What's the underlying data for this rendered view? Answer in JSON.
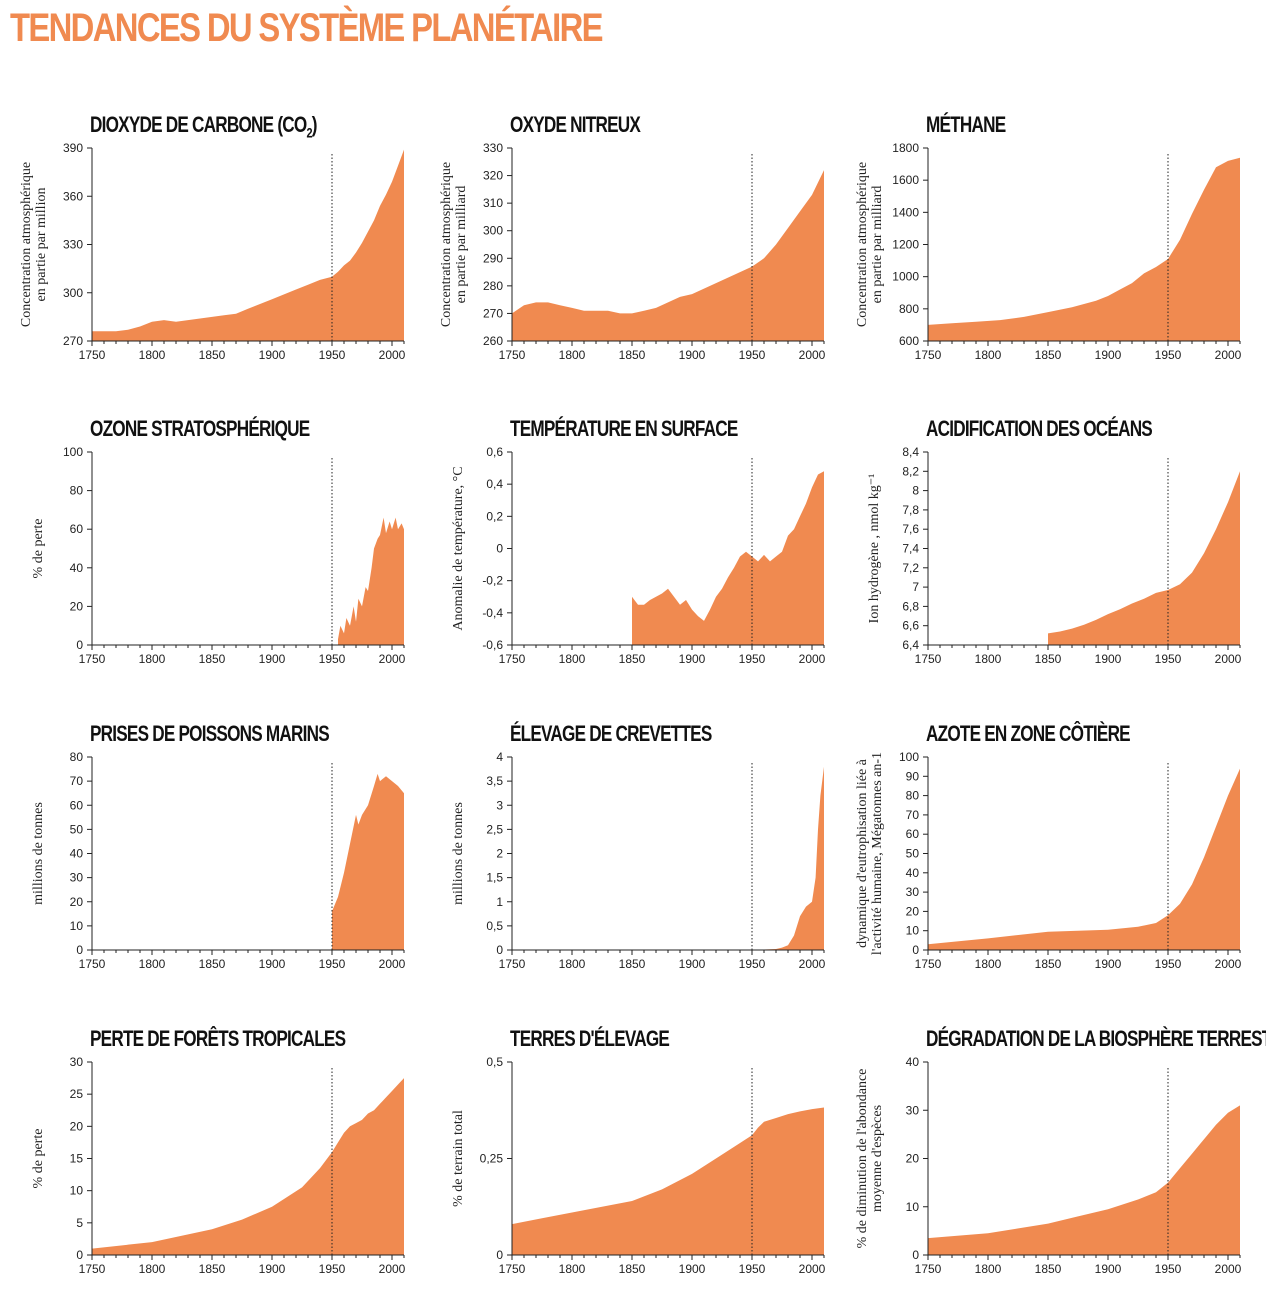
{
  "page_title": "TENDANCES DU SYSTÈME PLANÉTAIRE",
  "colors": {
    "fill": "#f08a50",
    "title": "#f08a50",
    "text": "#111111"
  },
  "chart_data": [
    {
      "type": "area",
      "title": "DIOXYDE DE CARBONE (CO",
      "title_sub": "2",
      "title_tail": ")",
      "ylabel": [
        "Concentration atmosphérique",
        "en partie par million"
      ],
      "xlabel": "",
      "xlim": [
        1750,
        2010
      ],
      "ylim": [
        270,
        390
      ],
      "yticks": [
        270,
        300,
        330,
        360,
        390
      ],
      "ytick_labels": [
        "270",
        "300",
        "330",
        "360",
        "390"
      ],
      "xticks": [
        1750,
        1800,
        1850,
        1900,
        1950,
        2000
      ],
      "xtick_labels": [
        "1750",
        "1800",
        "1850",
        "1900",
        "1950",
        "2000"
      ],
      "marker_year": 1950,
      "x": [
        1750,
        1770,
        1780,
        1790,
        1800,
        1810,
        1820,
        1830,
        1840,
        1850,
        1860,
        1870,
        1880,
        1890,
        1900,
        1910,
        1920,
        1930,
        1940,
        1950,
        1955,
        1960,
        1965,
        1970,
        1975,
        1980,
        1985,
        1990,
        1995,
        2000,
        2005,
        2010
      ],
      "y": [
        276,
        276,
        277,
        279,
        282,
        283,
        282,
        283,
        284,
        285,
        286,
        287,
        290,
        293,
        296,
        299,
        302,
        305,
        308,
        310,
        313,
        317,
        320,
        325,
        331,
        338,
        345,
        354,
        361,
        369,
        379,
        389
      ]
    },
    {
      "type": "area",
      "title": "OXYDE NITREUX",
      "ylabel": [
        "Concentration atmosphérique",
        "en partie par milliard"
      ],
      "xlabel": "",
      "xlim": [
        1750,
        2010
      ],
      "ylim": [
        260,
        330
      ],
      "yticks": [
        260,
        270,
        280,
        290,
        300,
        310,
        320,
        330
      ],
      "ytick_labels": [
        "260",
        "270",
        "280",
        "290",
        "300",
        "310",
        "320",
        "330"
      ],
      "xticks": [
        1750,
        1800,
        1850,
        1900,
        1950,
        2000
      ],
      "xtick_labels": [
        "1750",
        "1800",
        "1850",
        "1900",
        "1950",
        "2000"
      ],
      "marker_year": 1950,
      "x": [
        1750,
        1760,
        1770,
        1780,
        1790,
        1800,
        1810,
        1820,
        1830,
        1840,
        1850,
        1860,
        1870,
        1880,
        1890,
        1900,
        1910,
        1920,
        1930,
        1940,
        1950,
        1960,
        1970,
        1980,
        1990,
        2000,
        2010
      ],
      "y": [
        270,
        273,
        274,
        274,
        273,
        272,
        271,
        271,
        271,
        270,
        270,
        271,
        272,
        274,
        276,
        277,
        279,
        281,
        283,
        285,
        287,
        290,
        295,
        301,
        307,
        313,
        322
      ]
    },
    {
      "type": "area",
      "title": "MÉTHANE",
      "ylabel": [
        "Concentration atmosphérique",
        "en partie par milliard"
      ],
      "xlabel": "",
      "xlim": [
        1750,
        2010
      ],
      "ylim": [
        600,
        1800
      ],
      "yticks": [
        600,
        800,
        1000,
        1200,
        1400,
        1600,
        1800
      ],
      "ytick_labels": [
        "600",
        "800",
        "1000",
        "1200",
        "1400",
        "1600",
        "1800"
      ],
      "xticks": [
        1750,
        1800,
        1850,
        1900,
        1950,
        2000
      ],
      "xtick_labels": [
        "1750",
        "1800",
        "1850",
        "1900",
        "1950",
        "2000"
      ],
      "marker_year": 1950,
      "x": [
        1750,
        1770,
        1790,
        1810,
        1830,
        1850,
        1870,
        1890,
        1900,
        1910,
        1920,
        1930,
        1940,
        1950,
        1960,
        1970,
        1980,
        1990,
        2000,
        2010
      ],
      "y": [
        700,
        710,
        720,
        730,
        750,
        780,
        810,
        850,
        880,
        920,
        960,
        1020,
        1060,
        1110,
        1230,
        1390,
        1540,
        1680,
        1720,
        1740
      ]
    },
    {
      "type": "area",
      "title": "OZONE STRATOSPHÉRIQUE",
      "ylabel": [
        "% de perte"
      ],
      "xlabel": "",
      "xlim": [
        1750,
        2010
      ],
      "ylim": [
        0,
        100
      ],
      "yticks": [
        0,
        20,
        40,
        60,
        80,
        100
      ],
      "ytick_labels": [
        "0",
        "20",
        "40",
        "60",
        "80",
        "100"
      ],
      "xticks": [
        1750,
        1800,
        1850,
        1900,
        1950,
        2000
      ],
      "xtick_labels": [
        "1750",
        "1800",
        "1850",
        "1900",
        "1950",
        "2000"
      ],
      "marker_year": 1950,
      "x": [
        1955,
        1957,
        1960,
        1962,
        1965,
        1968,
        1970,
        1972,
        1975,
        1978,
        1980,
        1983,
        1985,
        1988,
        1990,
        1993,
        1995,
        1998,
        2000,
        2003,
        2005,
        2008,
        2010
      ],
      "y": [
        3,
        10,
        6,
        14,
        10,
        20,
        12,
        24,
        20,
        30,
        28,
        40,
        50,
        55,
        57,
        66,
        58,
        64,
        60,
        66,
        60,
        63,
        60
      ]
    },
    {
      "type": "area",
      "title": "TEMPÉRATURE EN SURFACE",
      "ylabel": [
        "Anomalie de température, °C"
      ],
      "xlabel": "",
      "xlim": [
        1750,
        2010
      ],
      "ylim": [
        -0.6,
        0.6
      ],
      "yticks": [
        -0.6,
        -0.4,
        -0.2,
        0,
        0.2,
        0.4,
        0.6
      ],
      "ytick_labels": [
        "-0,6",
        "-0,4",
        "-0,2",
        "0",
        "0,2",
        "0,4",
        "0,6"
      ],
      "xticks": [
        1750,
        1800,
        1850,
        1900,
        1950,
        2000
      ],
      "xtick_labels": [
        "1750",
        "1800",
        "1850",
        "1900",
        "1950",
        "2000"
      ],
      "marker_year": 1950,
      "x": [
        1850,
        1855,
        1860,
        1865,
        1870,
        1875,
        1880,
        1885,
        1890,
        1895,
        1900,
        1905,
        1910,
        1915,
        1920,
        1925,
        1930,
        1935,
        1940,
        1945,
        1950,
        1955,
        1960,
        1965,
        1970,
        1975,
        1980,
        1985,
        1990,
        1995,
        2000,
        2005,
        2010
      ],
      "y": [
        -0.3,
        -0.35,
        -0.35,
        -0.32,
        -0.3,
        -0.28,
        -0.25,
        -0.3,
        -0.35,
        -0.32,
        -0.38,
        -0.42,
        -0.45,
        -0.38,
        -0.3,
        -0.25,
        -0.18,
        -0.12,
        -0.05,
        -0.02,
        -0.05,
        -0.08,
        -0.04,
        -0.08,
        -0.05,
        -0.02,
        0.08,
        0.12,
        0.2,
        0.28,
        0.38,
        0.46,
        0.48
      ]
    },
    {
      "type": "area",
      "title": "ACIDIFICATION DES OCÉANS",
      "ylabel": [
        "Ion hydrogène , nmol kg⁻¹"
      ],
      "xlabel": "",
      "xlim": [
        1750,
        2010
      ],
      "ylim": [
        6.4,
        8.4
      ],
      "yticks": [
        6.4,
        6.6,
        6.8,
        7.0,
        7.2,
        7.4,
        7.6,
        7.8,
        8.0,
        8.2,
        8.4
      ],
      "ytick_labels": [
        "6,4",
        "6,6",
        "6,8",
        "7",
        "7,2",
        "7,4",
        "7,6",
        "7,8",
        "8",
        "8,2",
        "8,4"
      ],
      "xticks": [
        1750,
        1800,
        1850,
        1900,
        1950,
        2000
      ],
      "xtick_labels": [
        "1750",
        "1800",
        "1850",
        "1900",
        "1950",
        "2000"
      ],
      "marker_year": 1950,
      "x": [
        1850,
        1860,
        1870,
        1880,
        1890,
        1900,
        1910,
        1920,
        1930,
        1940,
        1950,
        1960,
        1970,
        1980,
        1990,
        2000,
        2010
      ],
      "y": [
        6.52,
        6.54,
        6.57,
        6.61,
        6.66,
        6.72,
        6.77,
        6.83,
        6.88,
        6.94,
        6.97,
        7.03,
        7.15,
        7.35,
        7.6,
        7.88,
        8.2
      ]
    },
    {
      "type": "area",
      "title": "PRISES DE POISSONS MARINS",
      "ylabel": [
        "millions de tonnes"
      ],
      "xlabel": "",
      "xlim": [
        1750,
        2010
      ],
      "ylim": [
        0,
        80
      ],
      "yticks": [
        0,
        10,
        20,
        30,
        40,
        50,
        60,
        70,
        80
      ],
      "ytick_labels": [
        "0",
        "10",
        "20",
        "30",
        "40",
        "50",
        "60",
        "70",
        "80"
      ],
      "xticks": [
        1750,
        1800,
        1850,
        1900,
        1950,
        2000
      ],
      "xtick_labels": [
        "1750",
        "1800",
        "1850",
        "1900",
        "1950",
        "2000"
      ],
      "marker_year": 1950,
      "x": [
        1950,
        1955,
        1960,
        1965,
        1970,
        1972,
        1975,
        1980,
        1985,
        1988,
        1990,
        1995,
        2000,
        2005,
        2010
      ],
      "y": [
        16,
        22,
        32,
        44,
        56,
        52,
        56,
        60,
        68,
        73,
        70,
        72,
        70,
        68,
        65
      ]
    },
    {
      "type": "area",
      "title": "ÉLEVAGE DE CREVETTES",
      "ylabel": [
        "millions de  tonnes"
      ],
      "xlabel": "",
      "xlim": [
        1750,
        2010
      ],
      "ylim": [
        0,
        4
      ],
      "yticks": [
        0,
        0.5,
        1,
        1.5,
        2,
        2.5,
        3,
        3.5,
        4
      ],
      "ytick_labels": [
        "0",
        "0,5",
        "1",
        "1,5",
        "2",
        "2,5",
        "3",
        "3,5",
        "4"
      ],
      "xticks": [
        1750,
        1800,
        1850,
        1900,
        1950,
        2000
      ],
      "xtick_labels": [
        "1750",
        "1800",
        "1850",
        "1900",
        "1950",
        "2000"
      ],
      "marker_year": 1950,
      "x": [
        1950,
        1960,
        1970,
        1975,
        1980,
        1985,
        1990,
        1995,
        2000,
        2003,
        2005,
        2007,
        2010
      ],
      "y": [
        0,
        0.01,
        0.02,
        0.05,
        0.1,
        0.3,
        0.7,
        0.9,
        1.0,
        1.5,
        2.5,
        3.2,
        3.8
      ]
    },
    {
      "type": "area",
      "title": "AZOTE EN ZONE CÔTIÈRE",
      "ylabel": [
        "dynamique d'eutrophisation liée à",
        "l'activité humaine, Mégatonnes an-1"
      ],
      "xlabel": "",
      "xlim": [
        1750,
        2010
      ],
      "ylim": [
        0,
        100
      ],
      "yticks": [
        0,
        10,
        20,
        30,
        40,
        50,
        60,
        70,
        80,
        90,
        100
      ],
      "ytick_labels": [
        "0",
        "10",
        "20",
        "30",
        "40",
        "50",
        "60",
        "70",
        "80",
        "90",
        "100"
      ],
      "xticks": [
        1750,
        1800,
        1850,
        1900,
        1950,
        2000
      ],
      "xtick_labels": [
        "1750",
        "1800",
        "1850",
        "1900",
        "1950",
        "2000"
      ],
      "marker_year": 1950,
      "x": [
        1750,
        1800,
        1850,
        1875,
        1900,
        1925,
        1940,
        1950,
        1960,
        1970,
        1980,
        1990,
        2000,
        2010
      ],
      "y": [
        3,
        6,
        9.5,
        10,
        10.5,
        12,
        14,
        18,
        24,
        34,
        48,
        64,
        80,
        94
      ]
    },
    {
      "type": "area",
      "title": "PERTE DE FORÊTS TROPICALES",
      "ylabel": [
        "% de perte"
      ],
      "xlabel": "",
      "xlim": [
        1750,
        2010
      ],
      "ylim": [
        0,
        30
      ],
      "yticks": [
        0,
        5,
        10,
        15,
        20,
        25,
        30
      ],
      "ytick_labels": [
        "0",
        "5",
        "10",
        "15",
        "20",
        "25",
        "30"
      ],
      "xticks": [
        1750,
        1800,
        1850,
        1900,
        1950,
        2000
      ],
      "xtick_labels": [
        "1750",
        "1800",
        "1850",
        "1900",
        "1950",
        "2000"
      ],
      "marker_year": 1950,
      "x": [
        1750,
        1800,
        1850,
        1875,
        1900,
        1925,
        1940,
        1950,
        1955,
        1960,
        1965,
        1970,
        1975,
        1980,
        1985,
        1990,
        1995,
        2000,
        2005,
        2010
      ],
      "y": [
        1,
        2,
        4,
        5.5,
        7.5,
        10.5,
        13.5,
        16,
        17.5,
        19,
        20,
        20.5,
        21,
        22,
        22.5,
        23.5,
        24.5,
        25.5,
        26.5,
        27.5
      ]
    },
    {
      "type": "area",
      "title": "TERRES D'ÉLEVAGE",
      "ylabel": [
        "% de terrain total"
      ],
      "xlabel": "",
      "xlim": [
        1750,
        2010
      ],
      "ylim": [
        0,
        0.5
      ],
      "yticks": [
        0,
        0.25,
        0.5
      ],
      "ytick_labels": [
        "0",
        "0,25",
        "0,5"
      ],
      "xticks": [
        1750,
        1800,
        1850,
        1900,
        1950,
        2000
      ],
      "xtick_labels": [
        "1750",
        "1800",
        "1850",
        "1900",
        "1950",
        "2000"
      ],
      "marker_year": 1950,
      "x": [
        1750,
        1775,
        1800,
        1825,
        1850,
        1875,
        1900,
        1925,
        1950,
        1955,
        1960,
        1970,
        1980,
        1990,
        2000,
        2010
      ],
      "y": [
        0.08,
        0.095,
        0.11,
        0.125,
        0.14,
        0.17,
        0.21,
        0.26,
        0.31,
        0.33,
        0.345,
        0.355,
        0.365,
        0.372,
        0.378,
        0.382
      ]
    },
    {
      "type": "area",
      "title": "DÉGRADATION DE LA BIOSPHÈRE TERRESTRE",
      "ylabel": [
        "% de diminution de l'abondance",
        "moyenne d'espèces"
      ],
      "xlabel": "",
      "xlim": [
        1750,
        2010
      ],
      "ylim": [
        0,
        40
      ],
      "yticks": [
        0,
        10,
        20,
        30,
        40
      ],
      "ytick_labels": [
        "0",
        "10",
        "20",
        "30",
        "40"
      ],
      "xticks": [
        1750,
        1800,
        1850,
        1900,
        1950,
        2000
      ],
      "xtick_labels": [
        "1750",
        "1800",
        "1850",
        "1900",
        "1950",
        "2000"
      ],
      "marker_year": 1950,
      "x": [
        1750,
        1800,
        1850,
        1875,
        1900,
        1925,
        1940,
        1950,
        1960,
        1970,
        1980,
        1990,
        2000,
        2010
      ],
      "y": [
        3.5,
        4.5,
        6.5,
        8,
        9.5,
        11.5,
        13,
        15,
        18,
        21,
        24,
        27,
        29.5,
        31
      ]
    }
  ]
}
